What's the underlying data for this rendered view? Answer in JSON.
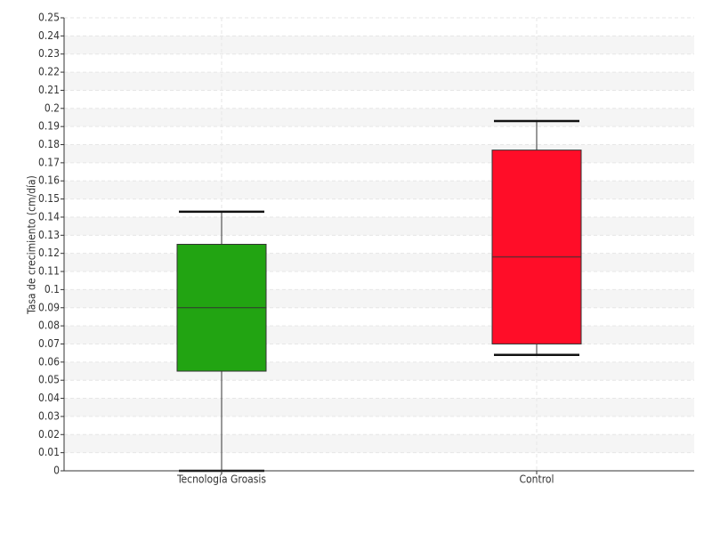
{
  "chart_data": {
    "type": "box",
    "y_label": "Tasa de crecimiento (cm/día)",
    "categories": [
      "Tecnología Groasis",
      "Control"
    ],
    "boxes": [
      {
        "min": 0,
        "q1": 0.055,
        "median": 0.09,
        "q3": 0.125,
        "max": 0.143,
        "color": "#22a412"
      },
      {
        "min": 0.064,
        "q1": 0.07,
        "median": 0.118,
        "q3": 0.177,
        "max": 0.193,
        "color": "#ff0d28"
      }
    ],
    "ylim": [
      0,
      0.25
    ],
    "yticks": [
      0,
      0.01,
      0.02,
      0.03,
      0.04,
      0.05,
      0.06,
      0.07,
      0.08,
      0.09,
      0.1,
      0.11,
      0.12,
      0.13,
      0.14,
      0.15,
      0.16,
      0.17,
      0.18,
      0.19,
      0.2,
      0.21,
      0.22,
      0.23,
      0.24,
      0.25
    ],
    "grid": true
  }
}
